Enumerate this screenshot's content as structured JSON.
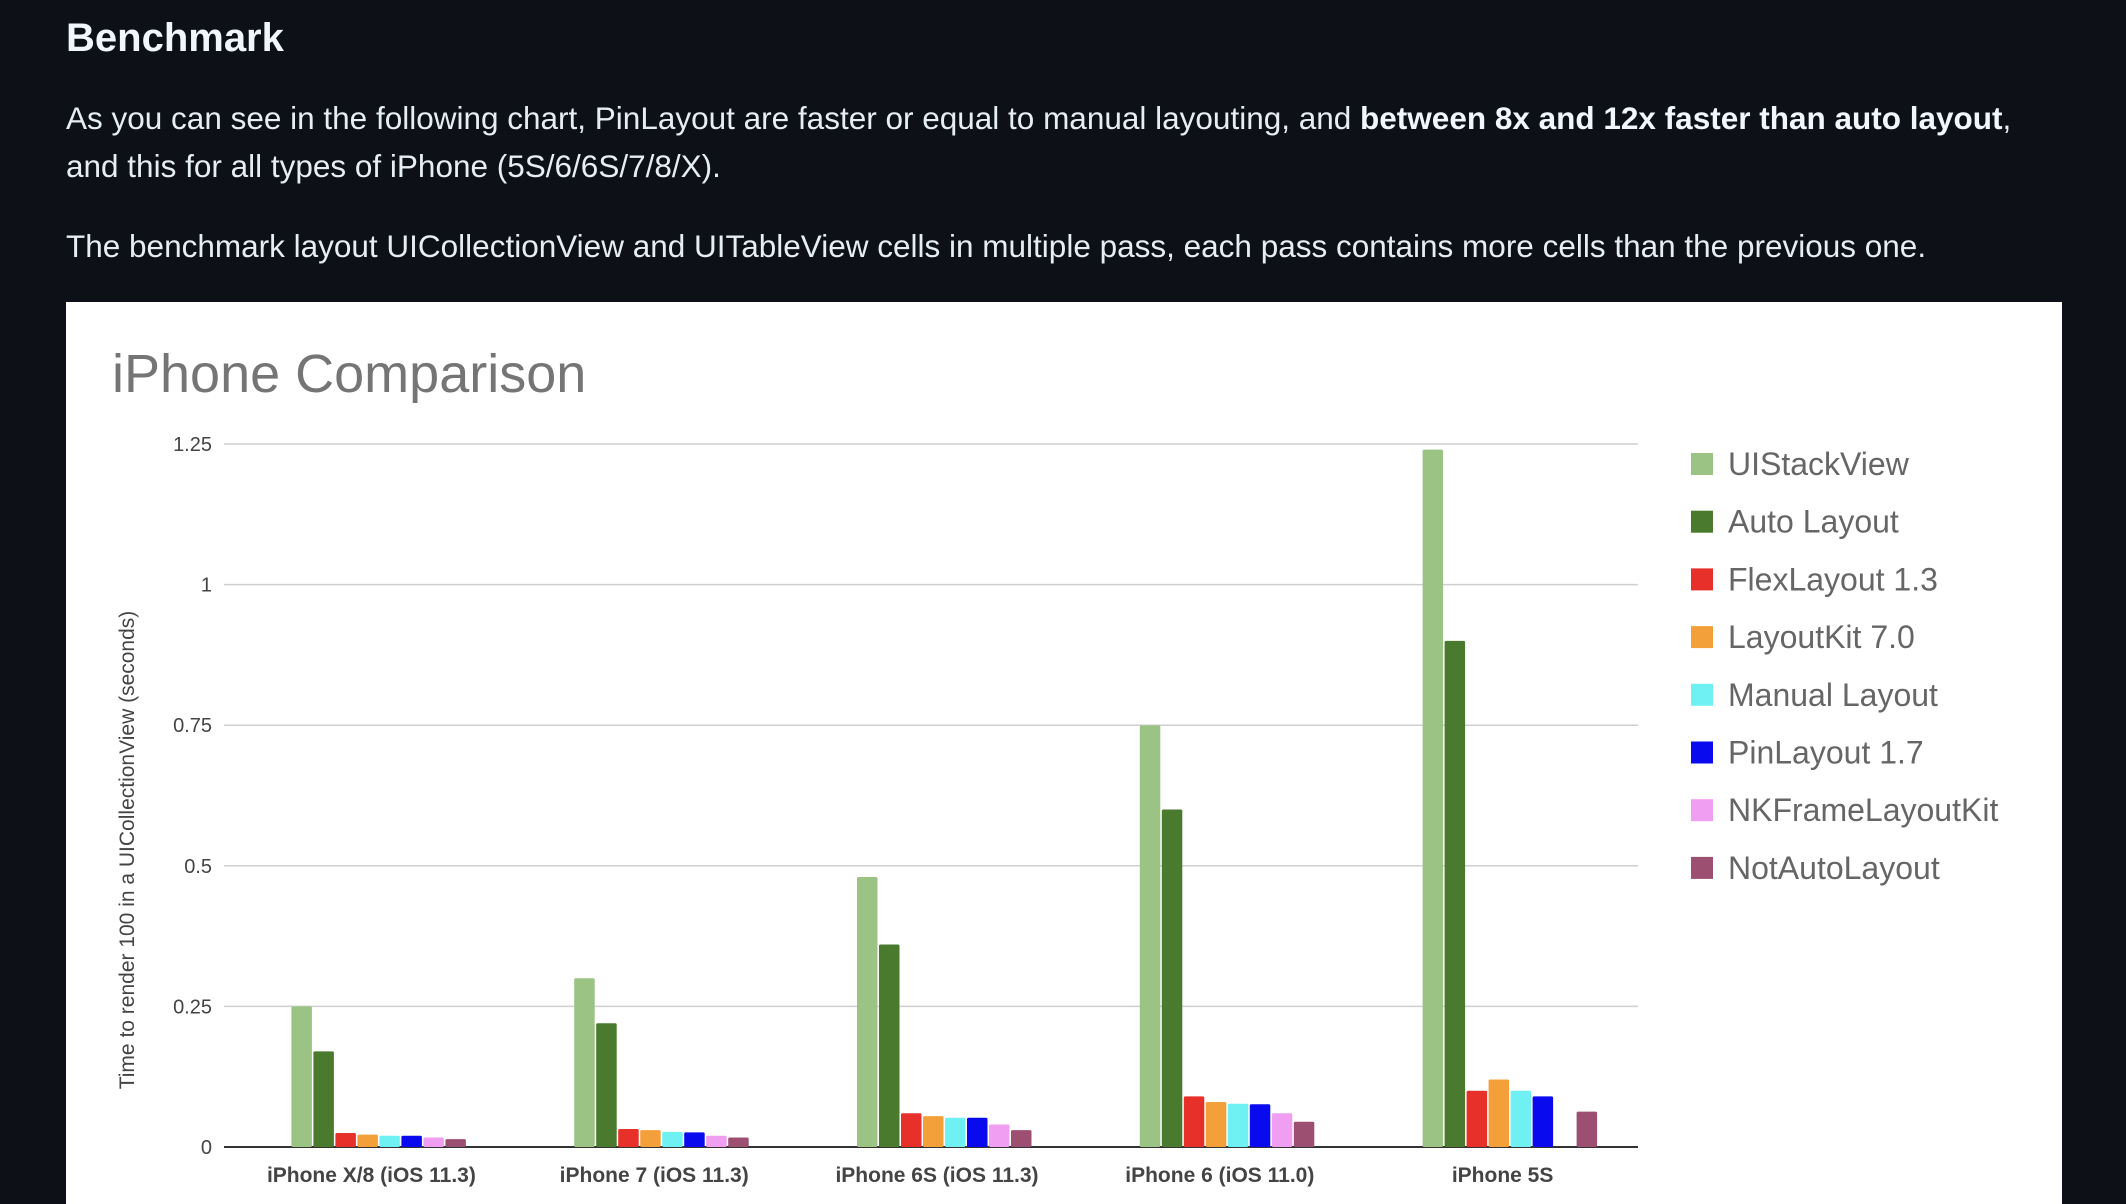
{
  "article": {
    "heading": "Benchmark",
    "para1_a": "As you can see in the following chart, PinLayout are faster or equal to manual layouting, and ",
    "para1_bold": "between 8x and 12x faster than auto layout",
    "para1_b": ", and this for all types of iPhone (5S/6/6S/7/8/X).",
    "para2": "The benchmark layout UICollectionView and UITableView cells in multiple pass, each pass contains more cells than the previous one."
  },
  "chart_data": {
    "type": "bar",
    "title": "iPhone Comparison",
    "xlabel": "",
    "ylabel": "Time to  render 100 in a UICollectionView (seconds)",
    "ylim": [
      0,
      1.25
    ],
    "yticks": [
      "0",
      "0.25",
      "0.5",
      "0.75",
      "1",
      "1.25"
    ],
    "ytick_values": [
      0,
      0.25,
      0.5,
      0.75,
      1,
      1.25
    ],
    "grid": true,
    "legend_position": "right",
    "categories": [
      "iPhone X/8 (iOS 11.3)",
      "iPhone 7 (iOS 11.3)",
      "iPhone 6S (iOS 11.3)",
      "iPhone 6 (iOS 11.0)",
      "iPhone 5S"
    ],
    "series": [
      {
        "name": "UIStackView",
        "color": "#9bc384",
        "values": [
          0.25,
          0.3,
          0.48,
          0.75,
          1.24
        ]
      },
      {
        "name": "Auto Layout",
        "color": "#4a7a2e",
        "values": [
          0.17,
          0.22,
          0.36,
          0.6,
          0.9
        ]
      },
      {
        "name": "FlexLayout 1.3",
        "color": "#e8302a",
        "values": [
          0.025,
          0.032,
          0.06,
          0.09,
          0.1
        ]
      },
      {
        "name": "LayoutKit 7.0",
        "color": "#f4a03a",
        "values": [
          0.022,
          0.03,
          0.055,
          0.08,
          0.12
        ]
      },
      {
        "name": "Manual Layout",
        "color": "#6ff1f4",
        "values": [
          0.02,
          0.027,
          0.052,
          0.077,
          0.1
        ]
      },
      {
        "name": "PinLayout 1.7",
        "color": "#0a0aee",
        "values": [
          0.02,
          0.026,
          0.052,
          0.076,
          0.09
        ]
      },
      {
        "name": "NKFrameLayoutKit",
        "color": "#ef9ef2",
        "values": [
          0.017,
          0.02,
          0.04,
          0.06,
          null
        ]
      },
      {
        "name": "NotAutoLayout",
        "color": "#9c4f70",
        "values": [
          0.014,
          0.017,
          0.03,
          0.045,
          0.063
        ]
      }
    ]
  }
}
